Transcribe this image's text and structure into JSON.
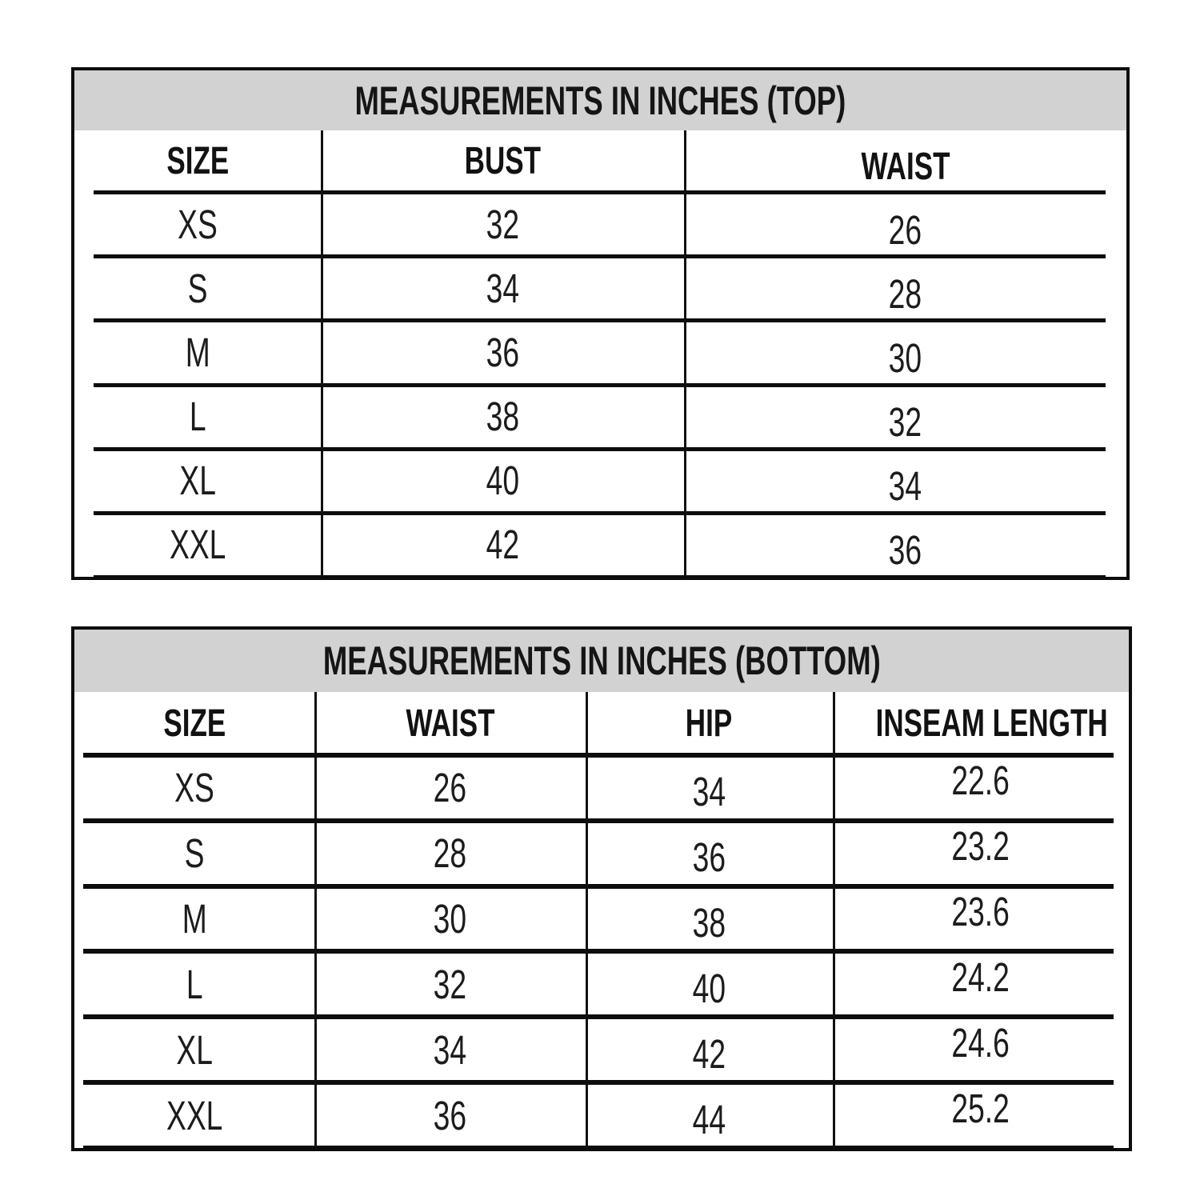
{
  "style": {
    "background": "#ffffff",
    "header_band_color": "#d2d2d2",
    "line_color": "#0d0d0d",
    "text_color": "#161616"
  },
  "chart_data": [
    {
      "type": "table",
      "title": "MEASUREMENTS IN INCHES (TOP)",
      "columns": [
        "SIZE",
        "BUST",
        "WAIST"
      ],
      "rows": [
        [
          "XS",
          "32",
          "26"
        ],
        [
          "S",
          "34",
          "28"
        ],
        [
          "M",
          "36",
          "30"
        ],
        [
          "L",
          "38",
          "32"
        ],
        [
          "XL",
          "40",
          "34"
        ],
        [
          "XXL",
          "42",
          "36"
        ]
      ]
    },
    {
      "type": "table",
      "title": "MEASUREMENTS IN INCHES (BOTTOM)",
      "columns": [
        "SIZE",
        "WAIST",
        "HIP",
        "INSEAM LENGTH"
      ],
      "rows": [
        [
          "XS",
          "26",
          "34",
          "22.6"
        ],
        [
          "S",
          "28",
          "36",
          "23.2"
        ],
        [
          "M",
          "30",
          "38",
          "23.6"
        ],
        [
          "L",
          "32",
          "40",
          "24.2"
        ],
        [
          "XL",
          "34",
          "42",
          "24.6"
        ],
        [
          "XXL",
          "36",
          "44",
          "25.2"
        ]
      ]
    }
  ]
}
